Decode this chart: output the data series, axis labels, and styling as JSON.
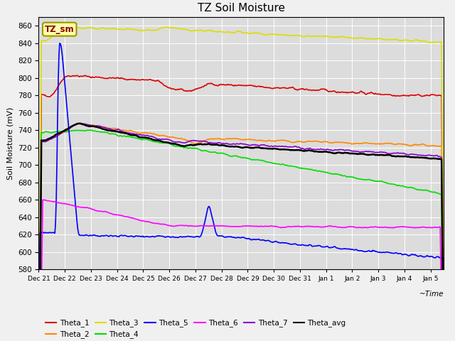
{
  "title": "TZ Soil Moisture",
  "ylabel": "Soil Moisture (mV)",
  "ylim": [
    580,
    870
  ],
  "xlim": [
    0,
    15.5
  ],
  "yticks": [
    580,
    600,
    620,
    640,
    660,
    680,
    700,
    720,
    740,
    760,
    780,
    800,
    820,
    840,
    860
  ],
  "plot_bg_color": "#dcdcdc",
  "fig_bg_color": "#f0f0f0",
  "legend_label": "TZ_sm",
  "tick_labels": [
    "Dec 21",
    "Dec 22",
    "Dec 23",
    "Dec 24",
    "Dec 25",
    "Dec 26",
    "Dec 27",
    "Dec 28",
    "Dec 29",
    "Dec 30",
    "Dec 31",
    "Jan 1",
    "Jan 2",
    "Jan 3",
    "Jan 4",
    "Jan 5"
  ],
  "series_colors": {
    "Theta_1": "#dd0000",
    "Theta_2": "#ff8800",
    "Theta_3": "#dddd00",
    "Theta_4": "#00dd00",
    "Theta_5": "#0000ff",
    "Theta_6": "#ff00ff",
    "Theta_7": "#8800cc",
    "Theta_avg": "#000000"
  }
}
